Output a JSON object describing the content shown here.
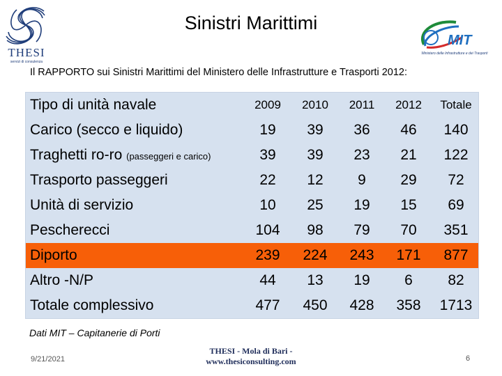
{
  "header": {
    "title": "Sinistri Marittimi",
    "subtitle": "Il RAPPORTO sui Sinistri Marittimi del Ministero delle Infrastrutture e Trasporti 2012:"
  },
  "logos": {
    "left_word": "THESI",
    "left_caption": "servizi di consulenza",
    "right_caption": "Ministero delle Infrastrutture e dei Trasporti",
    "right_accent": "#1f3d7a"
  },
  "table": {
    "header": {
      "label": "Tipo di unità navale",
      "cols": [
        "2009",
        "2010",
        "2011",
        "2012",
        "Totale"
      ]
    },
    "rows": [
      {
        "label": "Carico (secco e liquido)",
        "note": "",
        "values": [
          "19",
          "39",
          "36",
          "46",
          "140"
        ]
      },
      {
        "label": "Traghetti ro-ro ",
        "note": "(passeggeri e carico)",
        "values": [
          "39",
          "39",
          "23",
          "21",
          "122"
        ]
      },
      {
        "label": "Trasporto passeggeri",
        "note": "",
        "values": [
          "22",
          "12",
          "9",
          "29",
          "72"
        ]
      },
      {
        "label": "Unità di servizio",
        "note": "",
        "values": [
          "10",
          "25",
          "19",
          "15",
          "69"
        ]
      },
      {
        "label": "Pescherecci",
        "note": "",
        "values": [
          "104",
          "98",
          "79",
          "70",
          "351"
        ]
      },
      {
        "label": "Diporto",
        "note": "",
        "values": [
          "239",
          "224",
          "243",
          "171",
          "877"
        ]
      },
      {
        "label": "Altro -N/P",
        "note": "",
        "values": [
          "44",
          "13",
          "19",
          "6",
          "82"
        ]
      },
      {
        "label": "Totale complessivo",
        "note": "",
        "values": [
          "477",
          "450",
          "428",
          "358",
          "1713"
        ]
      }
    ],
    "highlight_color": "#f75f08",
    "background_color": "#d6e1ef"
  },
  "source": "Dati MIT – Capitanerie di Porti",
  "footer": {
    "date": "9/21/2021",
    "center_line1": "THESI - Mola di Bari -",
    "center_line2": "www.thesiconsulting.com",
    "page": "6"
  }
}
